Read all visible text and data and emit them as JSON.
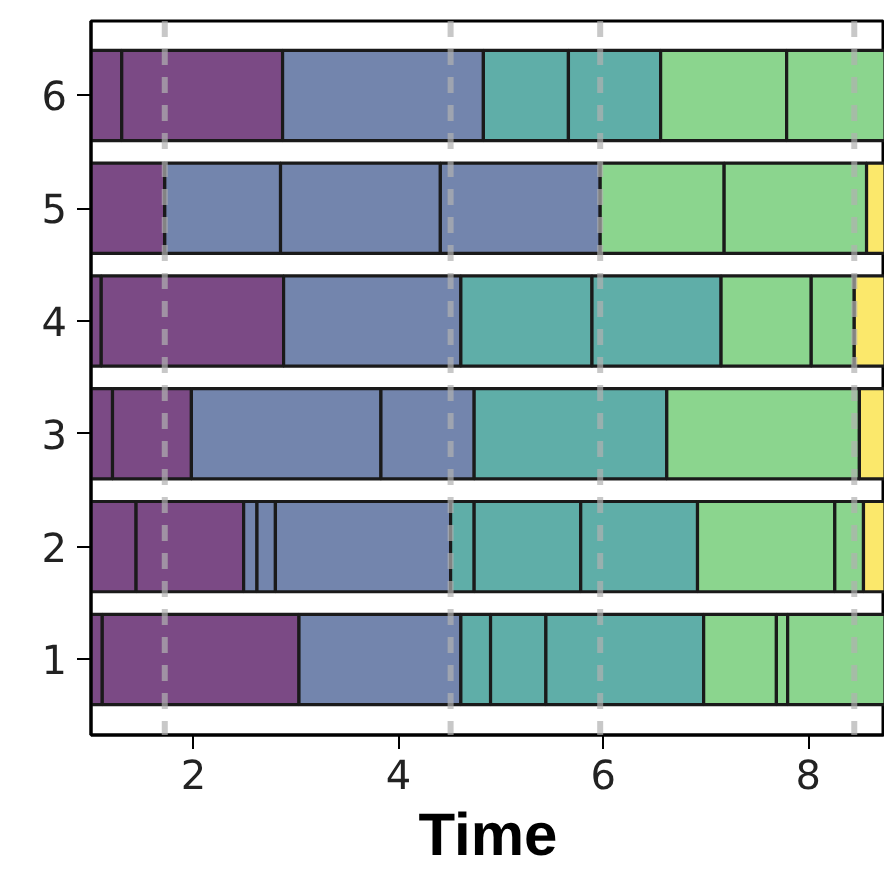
{
  "chart_data": {
    "type": "bar",
    "orientation": "horizontal",
    "xlabel": "Time",
    "categories": [
      "6",
      "5",
      "4",
      "3",
      "2",
      "1"
    ],
    "xlim": [
      1.0,
      8.75
    ],
    "xticks": [
      2,
      4,
      6,
      8
    ],
    "series": [
      {
        "base": [
          1.0,
          1.0,
          1.0,
          1.0,
          1.0,
          1.0
        ],
        "values": [
          0.3,
          0.72,
          0.1,
          0.21,
          0.44,
          0.11
        ],
        "colors": [
          "#7b4a85",
          "#7b4a85",
          "#7b4a85",
          "#7b4a85",
          "#7b4a85",
          "#7b4a85"
        ]
      },
      {
        "base": [
          1.3,
          1.72,
          1.1,
          1.21,
          1.44,
          1.11
        ],
        "values": [
          1.57,
          1.13,
          1.78,
          0.77,
          1.05,
          1.92
        ],
        "colors": [
          "#7b4a85",
          "#7385ad",
          "#7b4a85",
          "#7b4a85",
          "#7b4a85",
          "#7b4a85"
        ]
      },
      {
        "base": [
          2.87,
          2.85,
          2.88,
          1.98,
          2.49,
          3.03
        ],
        "values": [
          1.96,
          1.56,
          1.73,
          1.85,
          0.13,
          1.58
        ],
        "colors": [
          "#7385ad",
          "#7385ad",
          "#7385ad",
          "#7385ad",
          "#7385ad",
          "#7385ad"
        ]
      },
      {
        "base": [
          4.83,
          4.41,
          4.61,
          3.83,
          2.62,
          4.61
        ],
        "values": [
          0.83,
          1.56,
          1.28,
          0.91,
          0.18,
          0.29
        ],
        "colors": [
          "#5faea8",
          "#7385ad",
          "#5faea8",
          "#7385ad",
          "#7385ad",
          "#5faea8"
        ]
      },
      {
        "base": [
          5.66,
          5.97,
          5.89,
          4.74,
          null,
          4.9
        ],
        "values": [
          0.9,
          1.21,
          1.26,
          1.88,
          null,
          0.54
        ],
        "colors": [
          "#5faea8",
          "#8bd58e",
          "#5faea8",
          "#5faea8",
          null,
          "#5faea8"
        ]
      },
      {
        "base": [
          6.56,
          7.18,
          7.15,
          6.62,
          2.8,
          5.44
        ],
        "values": [
          1.23,
          1.39,
          0.88,
          1.88,
          1.71,
          1.54
        ],
        "colors": [
          "#8bd58e",
          "#8bd58e",
          "#8bd58e",
          "#8bd58e",
          "#7385ad",
          "#5faea8"
        ]
      },
      {
        "base": [
          7.79,
          8.57,
          8.03,
          8.5,
          4.51,
          6.98
        ],
        "values": [
          0.96,
          0.18,
          0.42,
          0.25,
          0.23,
          0.71
        ],
        "colors": [
          "#8bd58e",
          "#fbe86b",
          "#8bd58e",
          "#fbe86b",
          "#5faea8",
          "#8bd58e"
        ]
      },
      {
        "base": [
          null,
          null,
          8.45,
          null,
          4.74,
          7.69
        ],
        "values": [
          null,
          null,
          0.3,
          null,
          1.04,
          0.11
        ],
        "colors": [
          null,
          null,
          "#fbe86b",
          null,
          "#5faea8",
          "#8bd58e"
        ]
      },
      {
        "base": [
          null,
          null,
          null,
          null,
          5.78,
          7.8
        ],
        "values": [
          null,
          null,
          null,
          null,
          1.14,
          0.95
        ],
        "colors": [
          null,
          null,
          null,
          null,
          "#5faea8",
          "#8bd58e"
        ]
      },
      {
        "base": [
          null,
          null,
          null,
          null,
          6.92,
          null
        ],
        "values": [
          null,
          null,
          null,
          null,
          1.34,
          null
        ],
        "colors": [
          null,
          null,
          null,
          null,
          "#8bd58e",
          null
        ]
      },
      {
        "base": [
          null,
          null,
          null,
          null,
          8.26,
          null
        ],
        "values": [
          null,
          null,
          null,
          null,
          0.28,
          null
        ],
        "colors": [
          null,
          null,
          null,
          null,
          "#8bd58e",
          null
        ]
      },
      {
        "base": [
          null,
          null,
          null,
          null,
          8.54,
          null
        ],
        "values": [
          null,
          null,
          null,
          null,
          0.21,
          null
        ],
        "colors": [
          null,
          null,
          null,
          null,
          "#fbe86b",
          null
        ]
      }
    ],
    "ref_lines": [
      {
        "axis": "x",
        "value": 1.72,
        "color": "#b0b0b0",
        "line_style": "dashed"
      },
      {
        "axis": "x",
        "value": 4.51,
        "color": "#b0b0b0",
        "line_style": "dashed"
      },
      {
        "axis": "x",
        "value": 5.97,
        "color": "#b0b0b0",
        "line_style": "dashed"
      },
      {
        "axis": "x",
        "value": 8.45,
        "color": "#b0b0b0",
        "line_style": "dashed"
      }
    ]
  }
}
